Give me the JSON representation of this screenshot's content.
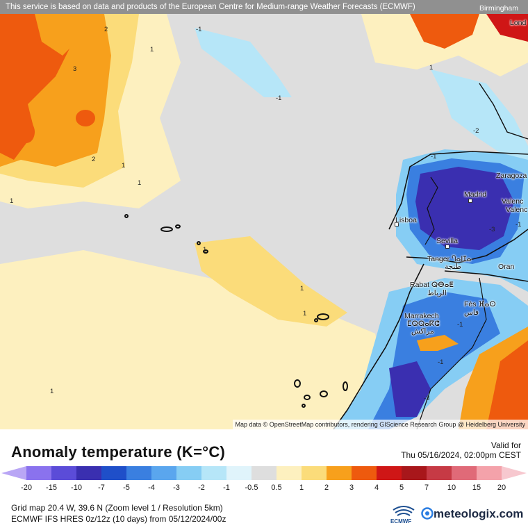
{
  "map": {
    "attribution_top": "This service is based on data and products of the European Centre for Medium-range Weather Forecasts (ECMWF)",
    "attribution_bottom": "Map data © OpenStreetMap contributors, rendering GIScience Research Group @ Heidelberg University",
    "cities": [
      {
        "name": "Birmingham"
      },
      {
        "name": "Lond"
      },
      {
        "name": "Zaragoza"
      },
      {
        "name": "Madrid"
      },
      {
        "name": "Valenc"
      },
      {
        "name": "Valenc"
      },
      {
        "name": "Lisboa"
      },
      {
        "name": "Sevilla"
      },
      {
        "name": "Tanger Ⴄⴰⵏⵊⴰ"
      },
      {
        "name": "طنجة"
      },
      {
        "name": "Oran"
      },
      {
        "name": "Rabat ⵕⴱⴰⵟ"
      },
      {
        "name": "الرباط"
      },
      {
        "name": "Fès ⴼⴰⵙ"
      },
      {
        "name": "فاس"
      },
      {
        "name": "Marrakech"
      },
      {
        "name": "ⵎⵕⵕⴰⴽⵛ"
      },
      {
        "name": "مراكش"
      }
    ],
    "contour_labels": [
      "2",
      "1",
      "3",
      "2",
      "1",
      "1",
      "1",
      "-1",
      "-1",
      "1",
      "1",
      "-1",
      "-2",
      "1",
      "-1",
      "-1",
      "-3",
      "-1",
      "-3",
      "1",
      "1"
    ]
  },
  "legend": {
    "title": "Anomaly temperature (K=°C)",
    "valid_label": "Valid for",
    "valid_time": "Thu 05/16/2024, 02:00pm CEST",
    "ticks": [
      "-20",
      "-15",
      "-10",
      "-7",
      "-5",
      "-4",
      "-3",
      "-2",
      "-1",
      "-0.5",
      "0.5",
      "1",
      "2",
      "3",
      "4",
      "5",
      "7",
      "10",
      "15",
      "20"
    ],
    "colors": [
      "#b9a6f5",
      "#8a72ee",
      "#5b4cd8",
      "#3a2fb0",
      "#1f4fc9",
      "#3a7fe0",
      "#5aa6ee",
      "#86cdf4",
      "#b6e6f8",
      "#e0f4fb",
      "#dedede",
      "#fdf0bf",
      "#fbdc7a",
      "#f7a01c",
      "#ee5a0e",
      "#cf1616",
      "#a8171b",
      "#c63a45",
      "#e06a78",
      "#f4a2aa",
      "#f7c8cf"
    ],
    "info_line1": "Grid map 20.4 W, 39.6 N (Zoom level 1 / Resolution 5km)",
    "info_line2": "ECMWF IFS HRES 0z/12z (10 days) from  05/12/2024/00z",
    "ecmwf_label": "ECMWF",
    "brand": "meteologix.com"
  }
}
